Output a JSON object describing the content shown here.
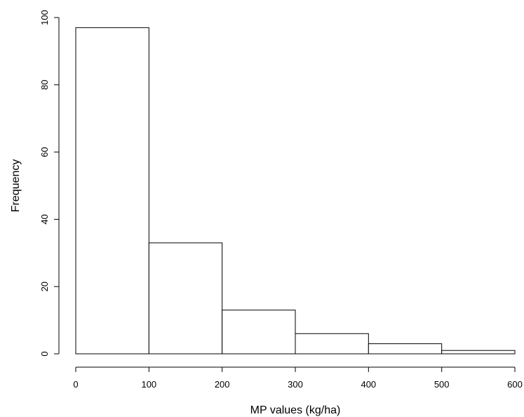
{
  "chart_data": {
    "type": "bar",
    "subtype": "histogram",
    "title": "",
    "xlabel": "MP values (kg/ha)",
    "ylabel": "Frequency",
    "bins": [
      {
        "start": 0,
        "end": 100,
        "count": 97
      },
      {
        "start": 100,
        "end": 200,
        "count": 33
      },
      {
        "start": 200,
        "end": 300,
        "count": 13
      },
      {
        "start": 300,
        "end": 400,
        "count": 6
      },
      {
        "start": 400,
        "end": 500,
        "count": 3
      },
      {
        "start": 500,
        "end": 600,
        "count": 1
      }
    ],
    "xlim": [
      0,
      600
    ],
    "ylim": [
      0,
      100
    ],
    "xticks": [
      0,
      100,
      200,
      300,
      400,
      500,
      600
    ],
    "yticks": [
      0,
      20,
      40,
      60,
      80,
      100
    ],
    "grid": false,
    "legend": "none",
    "bar_fill": "#ffffff",
    "bar_stroke": "#000000"
  }
}
